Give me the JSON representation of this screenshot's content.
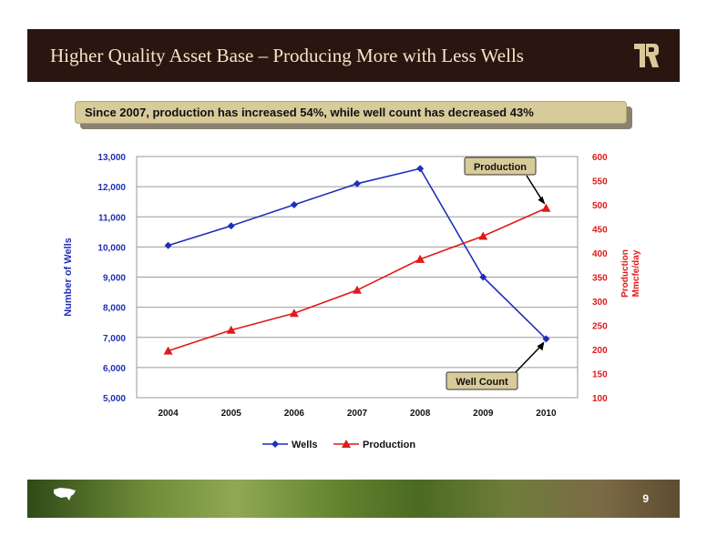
{
  "slide": {
    "title": "Higher Quality Asset Base – Producing More with Less Wells",
    "callout": "Since 2007, production has increased 54%, while well count has decreased 43%",
    "page_number": "9"
  },
  "colors": {
    "header_bg": "#2b1510",
    "title_text": "#f3e6c8",
    "callout_bg": "#d8cb9a",
    "wells": "#1f2fb8",
    "production": "#e01a1a",
    "annotation_bg": "#d8cb9a"
  },
  "chart_data": {
    "type": "line",
    "categories": [
      "2004",
      "2005",
      "2006",
      "2007",
      "2008",
      "2009",
      "2010"
    ],
    "series": [
      {
        "name": "Wells",
        "axis": "left",
        "marker": "diamond",
        "values": [
          10050,
          10700,
          11400,
          12100,
          12600,
          9000,
          6950
        ]
      },
      {
        "name": "Production",
        "axis": "right",
        "marker": "triangle",
        "values": [
          197,
          240,
          275,
          323,
          387,
          435,
          493
        ]
      }
    ],
    "ylabel_left": "Number of Wells",
    "ylabel_right": [
      "Production",
      "Mmcfe/day"
    ],
    "ylim_left": [
      5000,
      13000
    ],
    "ylim_right": [
      100,
      600
    ],
    "yticks_left": [
      "5,000",
      "6,000",
      "7,000",
      "8,000",
      "9,000",
      "10,000",
      "11,000",
      "12,000",
      "13,000"
    ],
    "yticks_right": [
      "100",
      "150",
      "200",
      "250",
      "300",
      "350",
      "400",
      "450",
      "500",
      "550",
      "600"
    ],
    "grid": true,
    "legend_position": "bottom",
    "annotations": [
      {
        "text": "Production",
        "points_to": "Production 2010"
      },
      {
        "text": "Well Count",
        "points_to": "Wells 2010"
      }
    ]
  }
}
